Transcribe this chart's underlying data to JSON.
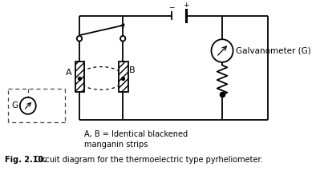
{
  "caption_bold": "Fig. 2.10.",
  "caption_rest": " Circuit diagram for the thermoelectric type pyrheliometer.",
  "strip_label_text": "A, B = Identical blackened\nmanganin strips",
  "galvanometer_label": "Galvanometer (G)",
  "label_A": "A",
  "label_B": "B",
  "label_G": "G",
  "bg_color": "#ffffff",
  "line_color": "#000000",
  "dashed_color": "#444444",
  "batt_minus": "−",
  "batt_plus": "+"
}
